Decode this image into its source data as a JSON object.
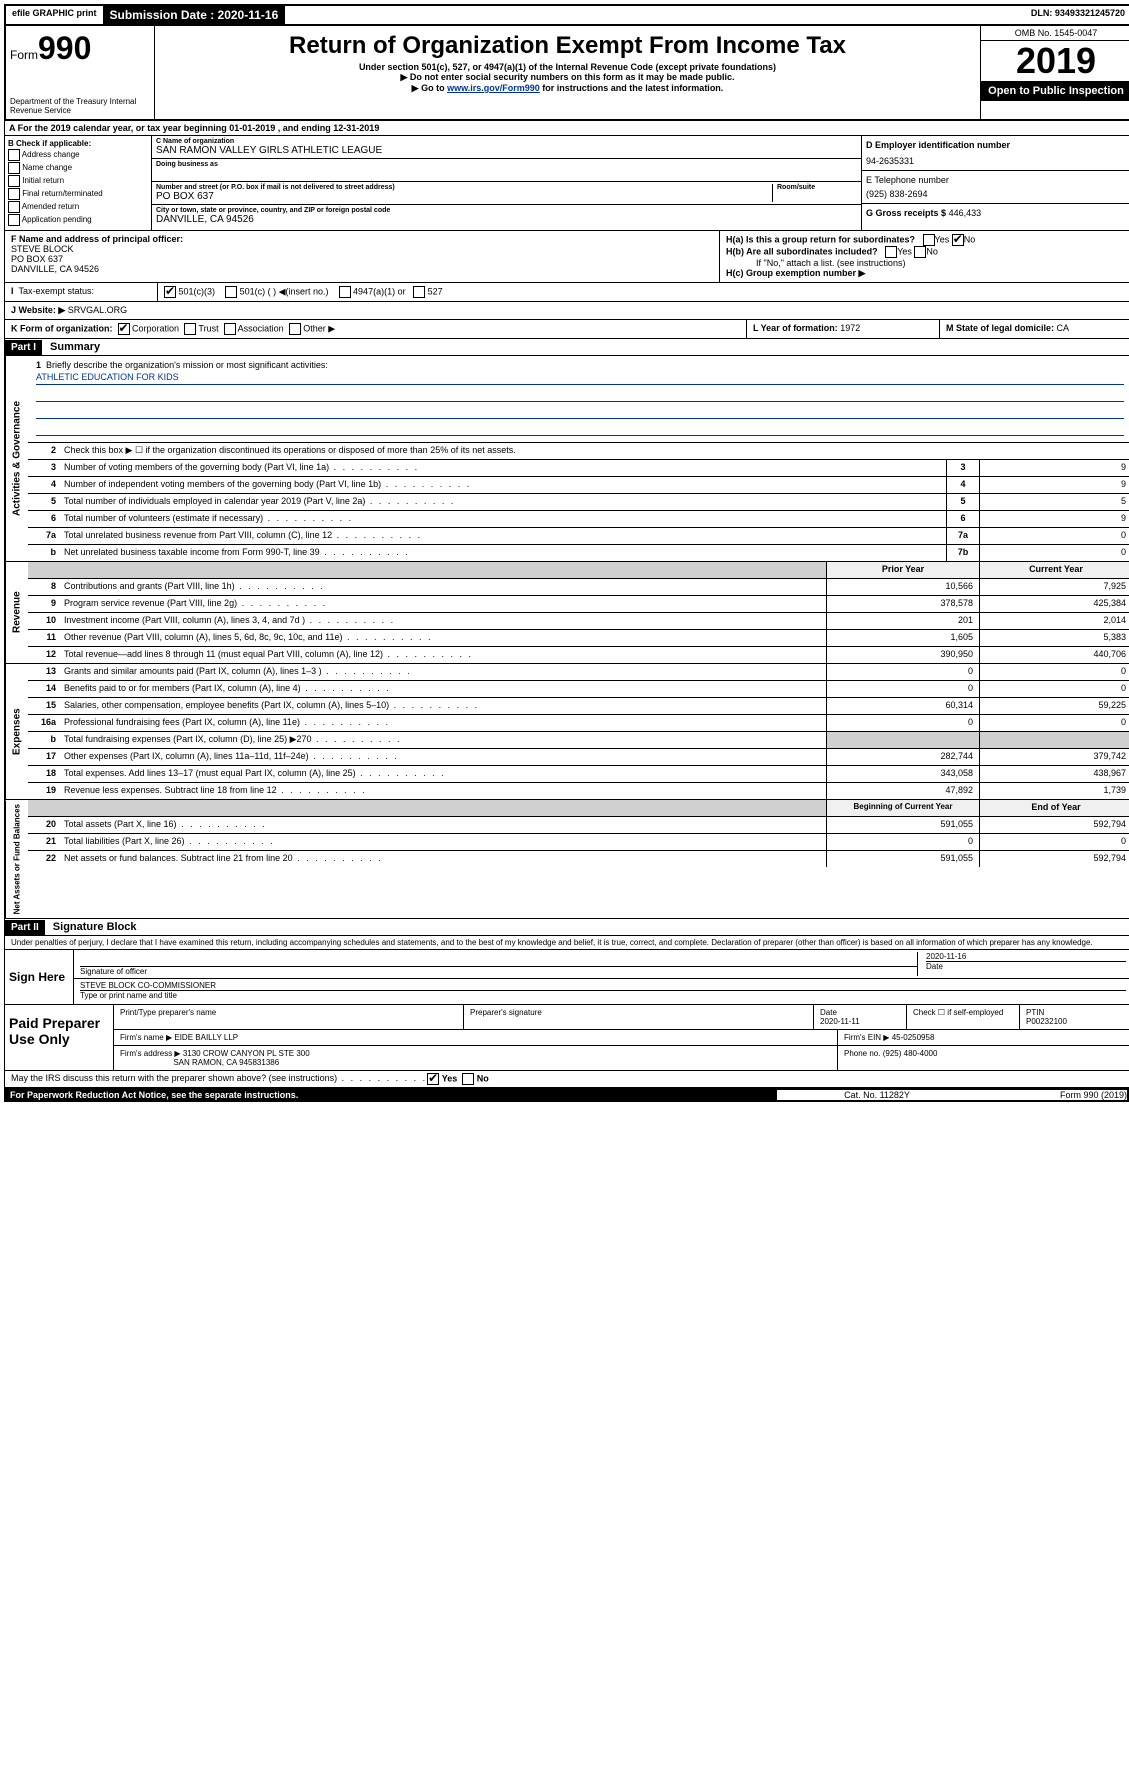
{
  "topbar": {
    "efile": "efile GRAPHIC print",
    "sub_label": "Submission Date : 2020-11-16",
    "dln": "DLN: 93493321245720"
  },
  "header": {
    "form_prefix": "Form",
    "form_num": "990",
    "dept": "Department of the Treasury\nInternal Revenue Service",
    "title": "Return of Organization Exempt From Income Tax",
    "subtitle": "Under section 501(c), 527, or 4947(a)(1) of the Internal Revenue Code (except private foundations)",
    "note1": "▶ Do not enter social security numbers on this form as it may be made public.",
    "note2_pre": "▶ Go to ",
    "note2_link": "www.irs.gov/Form990",
    "note2_post": " for instructions and the latest information.",
    "omb": "OMB No. 1545-0047",
    "year": "2019",
    "open": "Open to Public Inspection"
  },
  "section_a": "A For the 2019 calendar year, or tax year beginning 01-01-2019   , and ending 12-31-2019",
  "col_b": {
    "title": "B Check if applicable:",
    "items": [
      "Address change",
      "Name change",
      "Initial return",
      "Final return/terminated",
      "Amended return",
      "Application pending"
    ]
  },
  "org": {
    "c_label": "C Name of organization",
    "name": "SAN RAMON VALLEY GIRLS ATHLETIC LEAGUE",
    "dba_label": "Doing business as",
    "addr_label": "Number and street (or P.O. box if mail is not delivered to street address)",
    "room_label": "Room/suite",
    "addr": "PO BOX 637",
    "city_label": "City or town, state or province, country, and ZIP or foreign postal code",
    "city": "DANVILLE, CA  94526"
  },
  "right": {
    "d_label": "D Employer identification number",
    "ein": "94-2635331",
    "e_label": "E Telephone number",
    "phone": "(925) 838-2694",
    "g_label": "G Gross receipts $",
    "gross": "446,433"
  },
  "fh": {
    "f_label": "F  Name and address of principal officer:",
    "f_name": "STEVE BLOCK",
    "f_addr1": "PO BOX 637",
    "f_addr2": "DANVILLE, CA  94526",
    "ha": "H(a)  Is this a group return for subordinates?",
    "hb": "H(b)  Are all subordinates included?",
    "hb_note": "If \"No,\" attach a list. (see instructions)",
    "hc": "H(c)  Group exemption number ▶"
  },
  "tax_status": {
    "label": "Tax-exempt status:",
    "c3": "501(c)(3)",
    "c": "501(c) (  ) ◀(insert no.)",
    "a1": "4947(a)(1) or",
    "s527": "527"
  },
  "website": {
    "label": "J   Website: ▶",
    "val": "SRVGAL.ORG"
  },
  "k": {
    "label": "K Form of organization:",
    "corp": "Corporation",
    "trust": "Trust",
    "assoc": "Association",
    "other": "Other ▶",
    "l_label": "L Year of formation:",
    "l_val": "1972",
    "m_label": "M State of legal domicile:",
    "m_val": "CA"
  },
  "part1": {
    "header": "Part I",
    "title": "Summary"
  },
  "governance": {
    "vtab": "Activities & Governance",
    "q1": "Briefly describe the organization's mission or most significant activities:",
    "mission": "ATHLETIC EDUCATION FOR KIDS",
    "q2": "Check this box ▶ ☐  if the organization discontinued its operations or disposed of more than 25% of its net assets.",
    "rows": [
      {
        "n": "3",
        "d": "Number of voting members of the governing body (Part VI, line 1a)",
        "b": "3",
        "v": "9"
      },
      {
        "n": "4",
        "d": "Number of independent voting members of the governing body (Part VI, line 1b)",
        "b": "4",
        "v": "9"
      },
      {
        "n": "5",
        "d": "Total number of individuals employed in calendar year 2019 (Part V, line 2a)",
        "b": "5",
        "v": "5"
      },
      {
        "n": "6",
        "d": "Total number of volunteers (estimate if necessary)",
        "b": "6",
        "v": "9"
      },
      {
        "n": "7a",
        "d": "Total unrelated business revenue from Part VIII, column (C), line 12",
        "b": "7a",
        "v": "0"
      },
      {
        "n": "b",
        "d": "Net unrelated business taxable income from Form 990-T, line 39",
        "b": "7b",
        "v": "0"
      }
    ]
  },
  "revenue": {
    "vtab": "Revenue",
    "head_prior": "Prior Year",
    "head_curr": "Current Year",
    "rows": [
      {
        "n": "8",
        "d": "Contributions and grants (Part VIII, line 1h)",
        "p": "10,566",
        "c": "7,925"
      },
      {
        "n": "9",
        "d": "Program service revenue (Part VIII, line 2g)",
        "p": "378,578",
        "c": "425,384"
      },
      {
        "n": "10",
        "d": "Investment income (Part VIII, column (A), lines 3, 4, and 7d )",
        "p": "201",
        "c": "2,014"
      },
      {
        "n": "11",
        "d": "Other revenue (Part VIII, column (A), lines 5, 6d, 8c, 9c, 10c, and 11e)",
        "p": "1,605",
        "c": "5,383"
      },
      {
        "n": "12",
        "d": "Total revenue—add lines 8 through 11 (must equal Part VIII, column (A), line 12)",
        "p": "390,950",
        "c": "440,706"
      }
    ]
  },
  "expenses": {
    "vtab": "Expenses",
    "rows": [
      {
        "n": "13",
        "d": "Grants and similar amounts paid (Part IX, column (A), lines 1–3 )",
        "p": "0",
        "c": "0"
      },
      {
        "n": "14",
        "d": "Benefits paid to or for members (Part IX, column (A), line 4)",
        "p": "0",
        "c": "0"
      },
      {
        "n": "15",
        "d": "Salaries, other compensation, employee benefits (Part IX, column (A), lines 5–10)",
        "p": "60,314",
        "c": "59,225"
      },
      {
        "n": "16a",
        "d": "Professional fundraising fees (Part IX, column (A), line 11e)",
        "p": "0",
        "c": "0"
      },
      {
        "n": "b",
        "d": "Total fundraising expenses (Part IX, column (D), line 25) ▶270",
        "p": "",
        "c": "",
        "shade": true
      },
      {
        "n": "17",
        "d": "Other expenses (Part IX, column (A), lines 11a–11d, 11f–24e)",
        "p": "282,744",
        "c": "379,742"
      },
      {
        "n": "18",
        "d": "Total expenses. Add lines 13–17 (must equal Part IX, column (A), line 25)",
        "p": "343,058",
        "c": "438,967"
      },
      {
        "n": "19",
        "d": "Revenue less expenses. Subtract line 18 from line 12",
        "p": "47,892",
        "c": "1,739"
      }
    ]
  },
  "netassets": {
    "vtab": "Net Assets or Fund Balances",
    "head_prior": "Beginning of Current Year",
    "head_curr": "End of Year",
    "rows": [
      {
        "n": "20",
        "d": "Total assets (Part X, line 16)",
        "p": "591,055",
        "c": "592,794"
      },
      {
        "n": "21",
        "d": "Total liabilities (Part X, line 26)",
        "p": "0",
        "c": "0"
      },
      {
        "n": "22",
        "d": "Net assets or fund balances. Subtract line 21 from line 20",
        "p": "591,055",
        "c": "592,794"
      }
    ]
  },
  "part2": {
    "header": "Part II",
    "title": "Signature Block",
    "decl": "Under penalties of perjury, I declare that I have examined this return, including accompanying schedules and statements, and to the best of my knowledge and belief, it is true, correct, and complete. Declaration of preparer (other than officer) is based on all information of which preparer has any knowledge."
  },
  "sign": {
    "label": "Sign Here",
    "sig_label": "Signature of officer",
    "date": "2020-11-16",
    "date_label": "Date",
    "name": "STEVE BLOCK CO-COMMISSIONER",
    "name_label": "Type or print name and title"
  },
  "paid": {
    "label": "Paid Preparer Use Only",
    "h1": "Print/Type preparer's name",
    "h2": "Preparer's signature",
    "h3": "Date",
    "h3v": "2020-11-11",
    "h4": "Check ☐ if self-employed",
    "h5": "PTIN",
    "h5v": "P00232100",
    "firm_label": "Firm's name    ▶",
    "firm": "EIDE BAILLY LLP",
    "ein_label": "Firm's EIN ▶",
    "ein": "45-0250958",
    "addr_label": "Firm's address ▶",
    "addr1": "3130 CROW CANYON PL STE 300",
    "addr2": "SAN RAMON, CA  945831386",
    "phone_label": "Phone no.",
    "phone": "(925) 480-4000"
  },
  "footer": {
    "q": "May the IRS discuss this return with the preparer shown above? (see instructions)",
    "yes": "Yes",
    "no": "No",
    "pra": "For Paperwork Reduction Act Notice, see the separate instructions.",
    "cat": "Cat. No. 11282Y",
    "form": "Form 990 (2019)"
  }
}
